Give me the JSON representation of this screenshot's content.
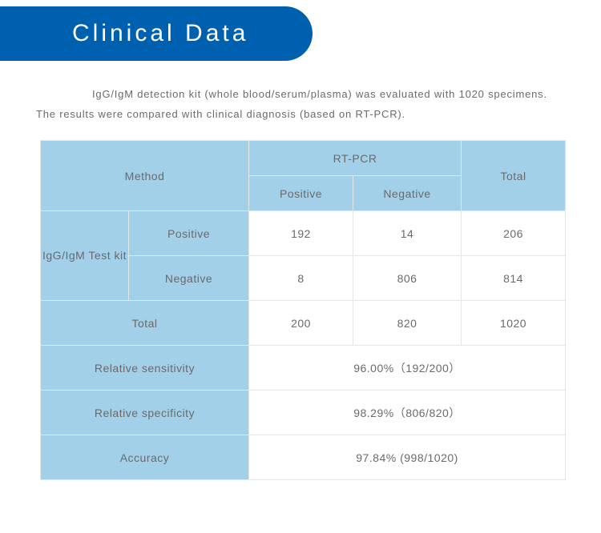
{
  "header": {
    "title": "Clinical Data"
  },
  "intro_text": "IgG/IgM detection kit (whole blood/serum/plasma) was evaluated with 1020 specimens. The results were compared with clinical diagnosis (based on RT-PCR).",
  "table": {
    "colors": {
      "header_bg": "#a1d0e8",
      "border": "#e6e6e6",
      "banner_bg": "#0060b0",
      "text": "#6a6a6a"
    },
    "method_label": "Method",
    "rtpcr_label": "RT-PCR",
    "total_label": "Total",
    "positive_label": "Positive",
    "negative_label": "Negative",
    "kit_label": "IgG/IgM Test kit",
    "rows": {
      "pos": {
        "label": "Positive",
        "pos": "192",
        "neg": "14",
        "total": "206"
      },
      "neg": {
        "label": "Negative",
        "pos": "8",
        "neg": "806",
        "total": "814"
      },
      "total": {
        "label": "Total",
        "pos": "200",
        "neg": "820",
        "total": "1020"
      }
    },
    "stats": {
      "sensitivity": {
        "label": "Relative sensitivity",
        "value": "96.00%（192/200）"
      },
      "specificity": {
        "label": "Relative specificity",
        "value": "98.29%（806/820）"
      },
      "accuracy": {
        "label": "Accuracy",
        "value": "97.84% (998/1020)"
      }
    }
  }
}
